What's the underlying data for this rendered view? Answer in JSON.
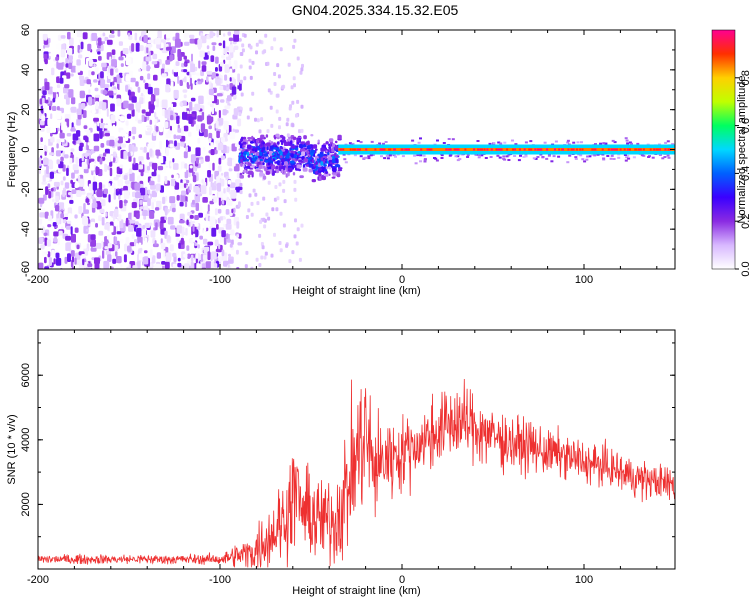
{
  "figure": {
    "title": "GN04.2025.334.15.32.E05"
  },
  "colors": {
    "line": "#ee3030",
    "axis": "#000000",
    "cmap": [
      "#ffffff",
      "#d8b8ff",
      "#8a2be2",
      "#3a00ff",
      "#0060ff",
      "#00d8ff",
      "#00ff60",
      "#c0ff00",
      "#ffd000",
      "#ff3000",
      "#ff0090"
    ]
  },
  "chart_data": [
    {
      "type": "heatmap",
      "title": "",
      "xlabel": "Height of straight line (km)",
      "ylabel": "Frequency (Hz)",
      "xlim": [
        -200,
        150
      ],
      "ylim": [
        -60,
        60
      ],
      "xticks": [
        -200,
        -100,
        0,
        100
      ],
      "xtick_labels": [
        "-200",
        "-100",
        "0",
        "100"
      ],
      "yticks": [
        -60,
        -40,
        -20,
        0,
        20,
        40,
        60
      ],
      "ytick_labels": [
        "-60",
        "-40",
        "-20",
        "0",
        "20",
        "40",
        "60"
      ],
      "colorbar": {
        "label": "Normalized spectral amplitude",
        "range": [
          0,
          1
        ],
        "ticks": [
          0.0,
          0.2,
          0.4,
          0.6,
          0.8
        ],
        "tick_labels": [
          "0.0",
          "0.2",
          "0.4",
          "0.6",
          "0.8"
        ]
      },
      "regions": [
        {
          "name": "noise",
          "x": [
            -200,
            -90
          ],
          "freq": [
            -60,
            60
          ],
          "amplitude": [
            0.0,
            0.25
          ]
        },
        {
          "name": "onset",
          "x": [
            -90,
            -35
          ],
          "freq": [
            -15,
            8
          ],
          "amplitude": [
            0.1,
            0.5
          ]
        },
        {
          "name": "signal",
          "x": [
            -35,
            150
          ],
          "freq": [
            -2,
            2
          ],
          "amplitude": [
            0.8,
            1.0
          ]
        }
      ]
    },
    {
      "type": "line",
      "title": "",
      "xlabel": "Height of straight line (km)",
      "ylabel": "SNR (10 * v/v)",
      "xlim": [
        -200,
        150
      ],
      "ylim": [
        0,
        7400
      ],
      "xticks": [
        -200,
        -100,
        0,
        100
      ],
      "xtick_labels": [
        "-200",
        "-100",
        "0",
        "100"
      ],
      "yticks": [
        2000,
        4000,
        6000
      ],
      "ytick_labels": [
        "2000",
        "4000",
        "6000"
      ],
      "envelope": {
        "x": [
          -200,
          -150,
          -100,
          -82,
          -75,
          -65,
          -58,
          -55,
          -45,
          -37,
          -30,
          -25,
          -20,
          -15,
          -10,
          0,
          10,
          20,
          30,
          40,
          50,
          60,
          70,
          80,
          90,
          100,
          110,
          120,
          130,
          140,
          150
        ],
        "mean": [
          300,
          300,
          300,
          500,
          900,
          1500,
          2500,
          1800,
          1500,
          1500,
          2500,
          3500,
          4200,
          3000,
          3400,
          3600,
          3900,
          4300,
          4600,
          4400,
          4100,
          3900,
          3800,
          3600,
          3500,
          3300,
          3200,
          3000,
          2800,
          2700,
          2600
        ],
        "noise": [
          120,
          120,
          130,
          500,
          800,
          1100,
          1300,
          1100,
          1100,
          1200,
          1600,
          1800,
          2000,
          1200,
          1200,
          900,
          850,
          900,
          1000,
          900,
          800,
          700,
          650,
          600,
          550,
          550,
          500,
          500,
          500,
          450,
          450
        ]
      }
    }
  ]
}
